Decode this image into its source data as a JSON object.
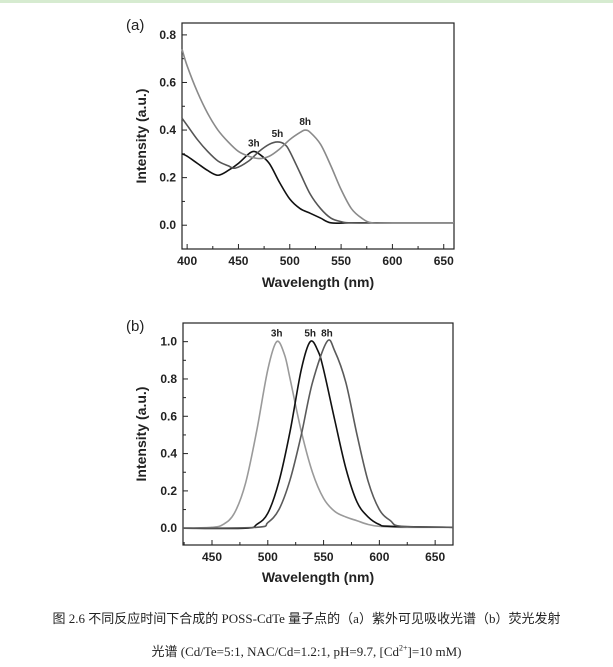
{
  "caption": {
    "line1": "图 2.6 不同反应时间下合成的 POSS-CdTe 量子点的（a）紫外可见吸收光谱（b）荧光发射",
    "line2_prefix": "光谱 (Cd/Te=5:1, NAC/Cd=1.2:1, pH=9.7, [Cd",
    "line2_sup": "2+",
    "line2_suffix": "]=10 mM)"
  },
  "chart_data": [
    {
      "panel": "(a)",
      "type": "line",
      "xlabel": "Wavelength (nm)",
      "ylabel": "Intensity (a.u.)",
      "xlim": [
        395,
        660
      ],
      "ylim": [
        -0.1,
        0.85
      ],
      "xticks": [
        400,
        450,
        500,
        550,
        600,
        650
      ],
      "yticks": [
        0.0,
        0.2,
        0.4,
        0.6,
        0.8
      ],
      "ytick_labels": [
        "0.0",
        "0.2",
        "0.4",
        "0.6",
        "0.8"
      ],
      "grid": false,
      "series": [
        {
          "name": "3h",
          "color": "#111111",
          "label_at": [
            465,
            0.31
          ],
          "x": [
            395,
            400,
            410,
            420,
            430,
            440,
            450,
            460,
            465,
            470,
            480,
            490,
            500,
            510,
            520,
            530,
            540,
            560,
            600,
            660
          ],
          "y": [
            0.3,
            0.29,
            0.26,
            0.23,
            0.21,
            0.23,
            0.26,
            0.3,
            0.31,
            0.3,
            0.26,
            0.18,
            0.11,
            0.07,
            0.05,
            0.03,
            0.01,
            0.01,
            0.01,
            0.01
          ]
        },
        {
          "name": "5h",
          "color": "#555555",
          "label_at": [
            488,
            0.35
          ],
          "x": [
            395,
            400,
            410,
            420,
            430,
            440,
            447,
            460,
            470,
            480,
            488,
            495,
            500,
            510,
            520,
            530,
            540,
            550,
            560,
            600,
            660
          ],
          "y": [
            0.45,
            0.42,
            0.36,
            0.31,
            0.27,
            0.25,
            0.24,
            0.27,
            0.31,
            0.34,
            0.35,
            0.34,
            0.31,
            0.22,
            0.13,
            0.07,
            0.03,
            0.015,
            0.01,
            0.01,
            0.01
          ]
        },
        {
          "name": "8h",
          "color": "#8a8a8a",
          "label_at": [
            515,
            0.4
          ],
          "x": [
            395,
            400,
            410,
            420,
            430,
            440,
            450,
            460,
            470,
            480,
            490,
            500,
            510,
            515,
            520,
            530,
            540,
            550,
            560,
            570,
            580,
            600,
            660
          ],
          "y": [
            0.74,
            0.67,
            0.56,
            0.47,
            0.4,
            0.35,
            0.31,
            0.29,
            0.28,
            0.29,
            0.32,
            0.36,
            0.39,
            0.4,
            0.39,
            0.34,
            0.25,
            0.15,
            0.07,
            0.03,
            0.01,
            0.01,
            0.01
          ]
        }
      ]
    },
    {
      "panel": "(b)",
      "type": "line",
      "xlabel": "Wavelength (nm)",
      "ylabel": "Intensity (a.u.)",
      "xlim": [
        424,
        666
      ],
      "ylim": [
        -0.09,
        1.1
      ],
      "xticks": [
        450,
        500,
        550,
        600,
        650
      ],
      "yticks": [
        0.0,
        0.2,
        0.4,
        0.6,
        0.8,
        1.0
      ],
      "ytick_labels": [
        "0.0",
        "0.2",
        "0.4",
        "0.6",
        "0.8",
        "1.0"
      ],
      "grid": false,
      "series": [
        {
          "name": "3h",
          "color": "#9a9a9a",
          "label_at": [
            508,
            1.0
          ],
          "x": [
            424,
            450,
            460,
            470,
            480,
            490,
            500,
            508,
            515,
            520,
            530,
            540,
            550,
            560,
            570,
            580,
            590,
            600,
            620,
            666
          ],
          "y": [
            0.0,
            0.005,
            0.02,
            0.08,
            0.24,
            0.52,
            0.85,
            1.0,
            0.93,
            0.8,
            0.52,
            0.3,
            0.16,
            0.09,
            0.06,
            0.04,
            0.02,
            0.01,
            0.005,
            0.005
          ]
        },
        {
          "name": "5h",
          "color": "#111111",
          "label_at": [
            538,
            1.0
          ],
          "x": [
            424,
            480,
            490,
            500,
            510,
            520,
            530,
            538,
            545,
            550,
            560,
            570,
            580,
            590,
            600,
            610,
            666
          ],
          "y": [
            0.0,
            0.0,
            0.02,
            0.08,
            0.25,
            0.52,
            0.85,
            1.0,
            0.95,
            0.85,
            0.58,
            0.32,
            0.14,
            0.06,
            0.02,
            0.01,
            0.005
          ]
        },
        {
          "name": "8h",
          "color": "#5a5a5a",
          "label_at": [
            553,
            1.0
          ],
          "x": [
            424,
            490,
            500,
            510,
            520,
            530,
            540,
            553,
            560,
            570,
            580,
            590,
            600,
            610,
            620,
            666
          ],
          "y": [
            0.0,
            0.005,
            0.03,
            0.1,
            0.26,
            0.5,
            0.78,
            1.0,
            0.95,
            0.78,
            0.5,
            0.25,
            0.1,
            0.04,
            0.01,
            0.005
          ]
        }
      ]
    }
  ]
}
